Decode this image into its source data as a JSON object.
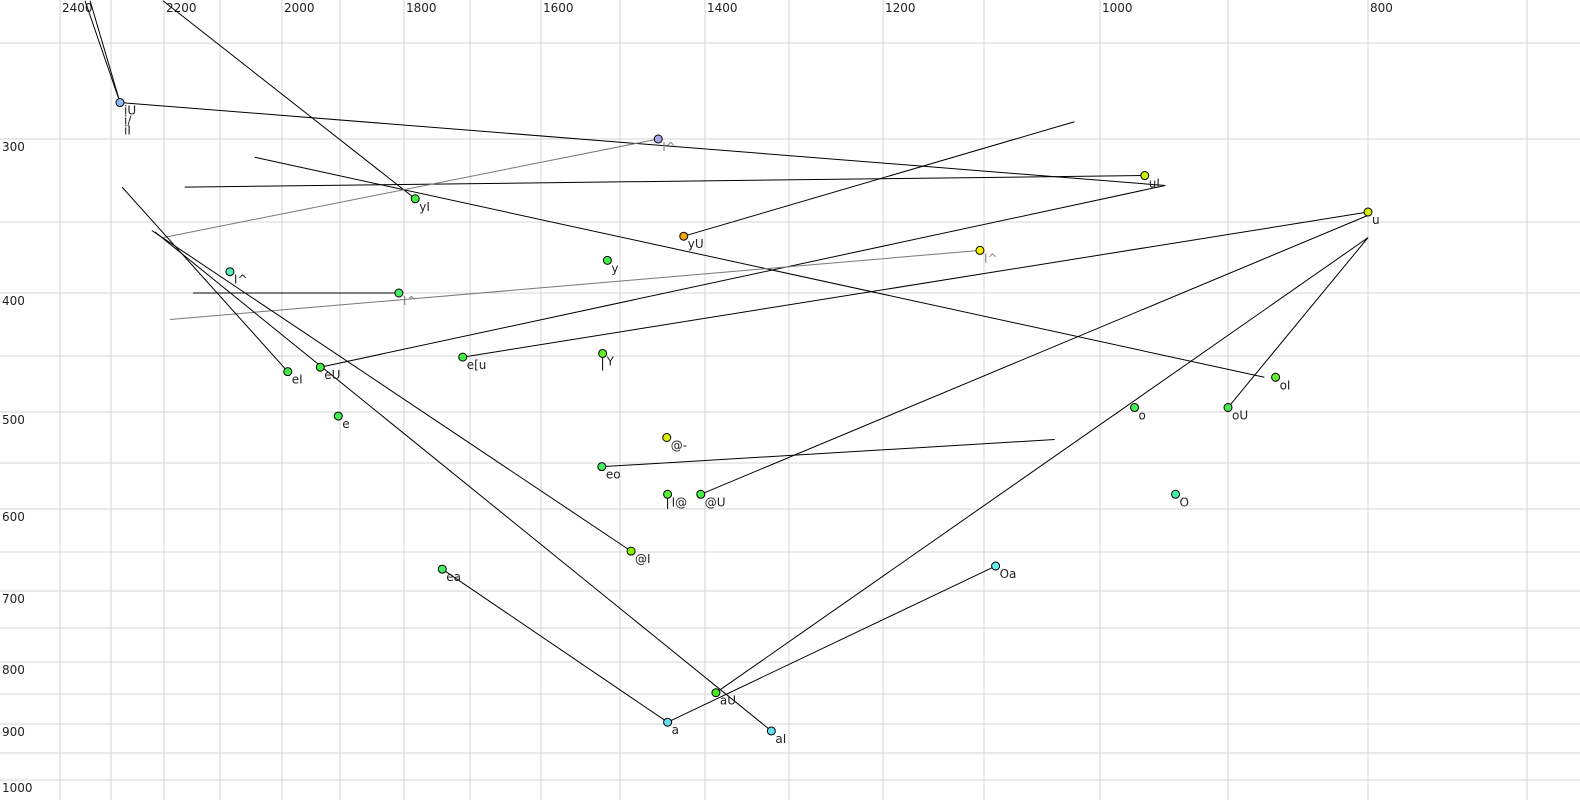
{
  "chart_data": {
    "type": "scatter",
    "title": "",
    "xlabel": "",
    "ylabel": "",
    "x_axis": {
      "quantity": "F2",
      "reversed": true,
      "scale": "nonlinear (auditory)",
      "ticks": [
        2400,
        2200,
        2000,
        1800,
        1600,
        1400,
        1200,
        1000,
        800
      ]
    },
    "y_axis": {
      "quantity": "F1",
      "reversed": true,
      "scale": "nonlinear (auditory)",
      "ticks": [
        300,
        400,
        500,
        600,
        700,
        800,
        900,
        1000
      ]
    },
    "grid": true,
    "points": [
      {
        "labels": [
          "iU",
          "i/",
          "iI"
        ],
        "f2": 2283,
        "f1": 281,
        "color": "#8cbcf0"
      },
      {
        "labels": [
          "I^"
        ],
        "f2": 1455,
        "f1": 300,
        "color": "#a4aae6",
        "label_color": "gray"
      },
      {
        "labels": [
          "uI"
        ],
        "f2": 965,
        "f1": 322,
        "color": "#ccf000"
      },
      {
        "labels": [
          "yI"
        ],
        "f2": 1783,
        "f1": 336,
        "color": "#44ee44"
      },
      {
        "labels": [
          "u"
        ],
        "f2": 800,
        "f1": 344,
        "color": "#d4f000"
      },
      {
        "labels": [
          "yU"
        ],
        "f2": 1425,
        "f1": 360,
        "color": "#f0aa00"
      },
      {
        "labels": [
          "I^"
        ],
        "f2": 1104,
        "f1": 370,
        "color": "#f4f000",
        "label_color": "gray"
      },
      {
        "labels": [
          "y"
        ],
        "f2": 1516,
        "f1": 377,
        "color": "#44ee44"
      },
      {
        "labels": [
          "I^"
        ],
        "f2": 2084,
        "f1": 385,
        "color": "#55eebb"
      },
      {
        "labels": [
          "I^"
        ],
        "f2": 1808,
        "f1": 400,
        "color": "#44ee66",
        "label_color": "gray"
      },
      {
        "labels": [
          "e[u"
        ],
        "f2": 1711,
        "f1": 451,
        "color": "#44ee44"
      },
      {
        "labels": [
          "Y"
        ],
        "f2": 1522,
        "f1": 448,
        "color": "#66ee22"
      },
      {
        "labels": [
          "eI"
        ],
        "f2": 1990,
        "f1": 464,
        "color": "#44ee44"
      },
      {
        "labels": [
          "eU"
        ],
        "f2": 1934,
        "f1": 460,
        "color": "#44ee44"
      },
      {
        "labels": [
          "oI"
        ],
        "f2": 866,
        "f1": 469,
        "color": "#66ee33"
      },
      {
        "labels": [
          "e"
        ],
        "f2": 1903,
        "f1": 504,
        "color": "#44ee55"
      },
      {
        "labels": [
          "o"
        ],
        "f2": 973,
        "f1": 496,
        "color": "#44ee55"
      },
      {
        "labels": [
          "oU"
        ],
        "f2": 900,
        "f1": 496,
        "color": "#44ee55"
      },
      {
        "labels": [
          "@-"
        ],
        "f2": 1445,
        "f1": 525,
        "color": "#ddf000"
      },
      {
        "labels": [
          "eo"
        ],
        "f2": 1523,
        "f1": 554,
        "color": "#44ee66"
      },
      {
        "labels": [
          "I@"
        ],
        "f2": 1444,
        "f1": 584,
        "color": "#55ee33"
      },
      {
        "labels": [
          "@U"
        ],
        "f2": 1405,
        "f1": 584,
        "color": "#44ee44"
      },
      {
        "labels": [
          "O"
        ],
        "f2": 941,
        "f1": 584,
        "color": "#44eeaa"
      },
      {
        "labels": [
          "@I"
        ],
        "f2": 1487,
        "f1": 649,
        "color": "#88ee00"
      },
      {
        "labels": [
          "ea"
        ],
        "f2": 1742,
        "f1": 672,
        "color": "#44ee66"
      },
      {
        "labels": [
          "Oa"
        ],
        "f2": 1090,
        "f1": 668,
        "color": "#66eeee"
      },
      {
        "labels": [
          "aU"
        ],
        "f2": 1387,
        "f1": 848,
        "color": "#44ee22"
      },
      {
        "labels": [
          "a"
        ],
        "f2": 1444,
        "f1": 897,
        "color": "#66ddee"
      },
      {
        "labels": [
          "aI"
        ],
        "f2": 1321,
        "f1": 912,
        "color": "#66ddee"
      }
    ],
    "segments": [
      {
        "from": [
          2283,
          281
        ],
        "to": [
          2351,
          228
        ],
        "color": "#000000"
      },
      {
        "from": [
          2283,
          281
        ],
        "to": [
          2341,
          228
        ],
        "color": "#000000"
      },
      {
        "from": [
          2283,
          281
        ],
        "to": [
          949,
          328
        ],
        "color": "#000000"
      },
      {
        "from": [
          2202,
          228
        ],
        "to": [
          1783,
          336
        ],
        "color": "#000000"
      },
      {
        "from": [
          2163,
          329
        ],
        "to": [
          965,
          322
        ],
        "color": "#000000"
      },
      {
        "from": [
          2044,
          311
        ],
        "to": [
          874,
          469
        ],
        "color": "#000000"
      },
      {
        "from": [
          2202,
          361
        ],
        "to": [
          1455,
          300
        ],
        "color": "#777777"
      },
      {
        "from": [
          1425,
          360
        ],
        "to": [
          1022,
          291
        ],
        "color": "#000000"
      },
      {
        "from": [
          1934,
          460
        ],
        "to": [
          949,
          328
        ],
        "color": "#000000"
      },
      {
        "from": [
          1711,
          451
        ],
        "to": [
          800,
          344
        ],
        "color": "#000000"
      },
      {
        "from": [
          2189,
          421
        ],
        "to": [
          1104,
          370
        ],
        "color": "#777777"
      },
      {
        "from": [
          2148,
          400
        ],
        "to": [
          1808,
          400
        ],
        "color": "#000000"
      },
      {
        "from": [
          2279,
          329
        ],
        "to": [
          1990,
          464
        ],
        "color": "#000000"
      },
      {
        "from": [
          2223,
          356
        ],
        "to": [
          1487,
          649
        ],
        "color": "#000000"
      },
      {
        "from": [
          2217,
          357
        ],
        "to": [
          1321,
          912
        ],
        "color": "#000000"
      },
      {
        "from": [
          1523,
          554
        ],
        "to": [
          1039,
          527
        ],
        "color": "#000000"
      },
      {
        "from": [
          1405,
          584
        ],
        "to": [
          800,
          346
        ],
        "color": "#000000"
      },
      {
        "from": [
          1387,
          848
        ],
        "to": [
          800,
          361
        ],
        "color": "#000000"
      },
      {
        "from": [
          900,
          496
        ],
        "to": [
          800,
          361
        ],
        "color": "#000000"
      },
      {
        "from": [
          1742,
          672
        ],
        "to": [
          1444,
          897
        ],
        "color": "#000000"
      },
      {
        "from": [
          1444,
          897
        ],
        "to": [
          1090,
          668
        ],
        "color": "#000000"
      },
      {
        "from": [
          1522,
          448
        ],
        "to": [
          1522,
          463
        ],
        "color": "#000000"
      },
      {
        "from": [
          1444,
          584
        ],
        "to": [
          1444,
          600
        ],
        "color": "#000000"
      }
    ]
  }
}
